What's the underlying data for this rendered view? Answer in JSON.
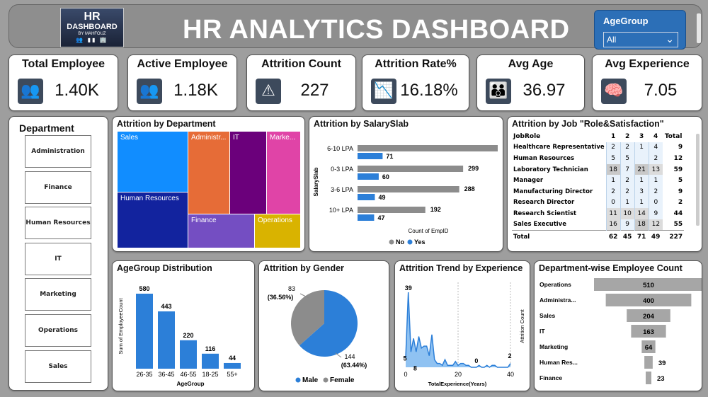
{
  "header": {
    "title": "HR ANALYTICS DASHBOARD",
    "logo_line1": "HR",
    "logo_line2": "DASHBOARD",
    "logo_line3": "BY MAHFOUZ",
    "slicer_label": "AgeGroup",
    "slicer_value": "All"
  },
  "kpis": [
    {
      "title": "Total Employee",
      "value": "1.40K",
      "icon": "people-icon"
    },
    {
      "title": "Active Employee",
      "value": "1.18K",
      "icon": "user-group-icon"
    },
    {
      "title": "Attrition Count",
      "value": "227",
      "icon": "warning-icon"
    },
    {
      "title": "Attrition Rate%",
      "value": "16.18%",
      "icon": "declining-chart-icon"
    },
    {
      "title": "Avg Age",
      "value": "36.97",
      "icon": "family-icon"
    },
    {
      "title": "Avg Experience",
      "value": "7.05",
      "icon": "brain-head-icon"
    }
  ],
  "department_slicer": {
    "title": "Department",
    "items": [
      "Administration",
      "Finance",
      "Human Resources",
      "IT",
      "Marketing",
      "Operations",
      "Sales"
    ]
  },
  "treemap": {
    "title": "Attrition by Department",
    "cells": [
      {
        "label": "Sales",
        "color": "#118dff"
      },
      {
        "label": "Administr...",
        "color": "#e66c37"
      },
      {
        "label": "IT",
        "color": "#6b007b"
      },
      {
        "label": "Marke...",
        "color": "#e044a7"
      },
      {
        "label": "Human Resources",
        "color": "#12239e"
      },
      {
        "label": "Finance",
        "color": "#744ec2"
      },
      {
        "label": "Operations",
        "color": "#d9b300"
      }
    ]
  },
  "salary": {
    "title": "Attrition by SalarySlab",
    "ylabel": "SalarySlab",
    "xlabel": "Count of EmpID",
    "legend": [
      "No",
      "Yes"
    ],
    "colors": {
      "No": "#8c8c8c",
      "Yes": "#2c7fd8"
    },
    "rows": [
      {
        "label": "6-10 LPA",
        "no": 397,
        "yes": 71
      },
      {
        "label": "0-3 LPA",
        "no": 299,
        "yes": 60
      },
      {
        "label": "3-6 LPA",
        "no": 288,
        "yes": 49
      },
      {
        "label": "10+ LPA",
        "no": 192,
        "yes": 47
      }
    ]
  },
  "jobrole": {
    "title": "Attrition by Job \"Role&Satisfaction\"",
    "headers": [
      "JobRole",
      "1",
      "2",
      "3",
      "4",
      "Total"
    ],
    "rows": [
      [
        "Healthcare Representative",
        "2",
        "2",
        "1",
        "4",
        "9"
      ],
      [
        "Human Resources",
        "5",
        "5",
        "",
        "2",
        "12"
      ],
      [
        "Laboratory Technician",
        "18",
        "7",
        "21",
        "13",
        "59"
      ],
      [
        "Manager",
        "1",
        "2",
        "1",
        "1",
        "5"
      ],
      [
        "Manufacturing Director",
        "2",
        "2",
        "3",
        "2",
        "9"
      ],
      [
        "Research Director",
        "0",
        "1",
        "1",
        "0",
        "2"
      ],
      [
        "Research Scientist",
        "11",
        "10",
        "14",
        "9",
        "44"
      ],
      [
        "Sales Executive",
        "16",
        "9",
        "18",
        "12",
        "55"
      ]
    ],
    "totals": [
      "Total",
      "62",
      "45",
      "71",
      "49",
      "227"
    ]
  },
  "agegroup": {
    "title": "AgeGroup Distribution",
    "ylabel": "Sum of EmployeeCount",
    "xlabel": "AgeGroup",
    "bars": [
      {
        "label": "26-35",
        "value": 580
      },
      {
        "label": "36-45",
        "value": 443
      },
      {
        "label": "46-55",
        "value": 220
      },
      {
        "label": "18-25",
        "value": 116
      },
      {
        "label": "55+",
        "value": 44
      }
    ]
  },
  "gender": {
    "title": "Attrition by Gender",
    "female_label": "83",
    "female_pct": "(36.56%)",
    "male_label": "144",
    "male_pct": "(63.44%)",
    "legend": [
      "Male",
      "Female"
    ],
    "colors": {
      "Male": "#2c7fd8",
      "Female": "#8c8c8c"
    }
  },
  "trend": {
    "title": "Attrition Trend by Experience",
    "xlabel": "TotalExperience(Years)",
    "ylabel": "Attrition Count",
    "ticks": [
      "0",
      "20",
      "40"
    ],
    "labels": [
      "39",
      "8",
      "5",
      "0",
      "2"
    ]
  },
  "funnel": {
    "title": "Department-wise Employee Count",
    "rows": [
      {
        "label": "Operations",
        "value": 510
      },
      {
        "label": "Administra...",
        "value": 400
      },
      {
        "label": "Sales",
        "value": 204
      },
      {
        "label": "IT",
        "value": 163
      },
      {
        "label": "Marketing",
        "value": 64
      },
      {
        "label": "Human Res...",
        "value": 39
      },
      {
        "label": "Finance",
        "value": 23
      }
    ]
  },
  "chart_data": [
    {
      "type": "bar",
      "title": "Attrition by SalarySlab",
      "categories": [
        "6-10 LPA",
        "0-3 LPA",
        "3-6 LPA",
        "10+ LPA"
      ],
      "series": [
        {
          "name": "No",
          "values": [
            397,
            299,
            288,
            192
          ]
        },
        {
          "name": "Yes",
          "values": [
            71,
            60,
            49,
            47
          ]
        }
      ],
      "xlabel": "Count of EmpID",
      "ylabel": "SalarySlab"
    },
    {
      "type": "bar",
      "title": "AgeGroup Distribution",
      "categories": [
        "26-35",
        "36-45",
        "46-55",
        "18-25",
        "55+"
      ],
      "values": [
        580,
        443,
        220,
        116,
        44
      ],
      "xlabel": "AgeGroup",
      "ylabel": "Sum of EmployeeCount"
    },
    {
      "type": "pie",
      "title": "Attrition by Gender",
      "categories": [
        "Male",
        "Female"
      ],
      "values": [
        144,
        83
      ]
    },
    {
      "type": "area",
      "title": "Attrition Trend by Experience",
      "x": [
        0,
        1,
        2,
        3,
        4,
        5,
        6,
        7,
        8,
        9,
        10,
        11,
        12,
        13,
        14,
        15,
        16,
        17,
        18,
        19,
        20,
        21,
        22,
        23,
        24,
        25,
        26,
        27,
        28,
        29,
        30,
        31,
        32,
        33,
        34,
        35,
        36,
        37,
        38,
        39,
        40
      ],
      "y": [
        5,
        39,
        8,
        15,
        8,
        16,
        10,
        11,
        11,
        6,
        17,
        4,
        2,
        2,
        1,
        4,
        1,
        1,
        1,
        3,
        1,
        2,
        2,
        1,
        1,
        0,
        0,
        0,
        1,
        0,
        0,
        1,
        0,
        1,
        1,
        0,
        0,
        0,
        0,
        0,
        2
      ],
      "xlabel": "TotalExperience(Years)",
      "ylabel": "Attrition Count"
    },
    {
      "type": "bar",
      "title": "Department-wise Employee Count",
      "categories": [
        "Operations",
        "Administra...",
        "Sales",
        "IT",
        "Marketing",
        "Human Res...",
        "Finance"
      ],
      "values": [
        510,
        400,
        204,
        163,
        64,
        39,
        23
      ]
    }
  ]
}
